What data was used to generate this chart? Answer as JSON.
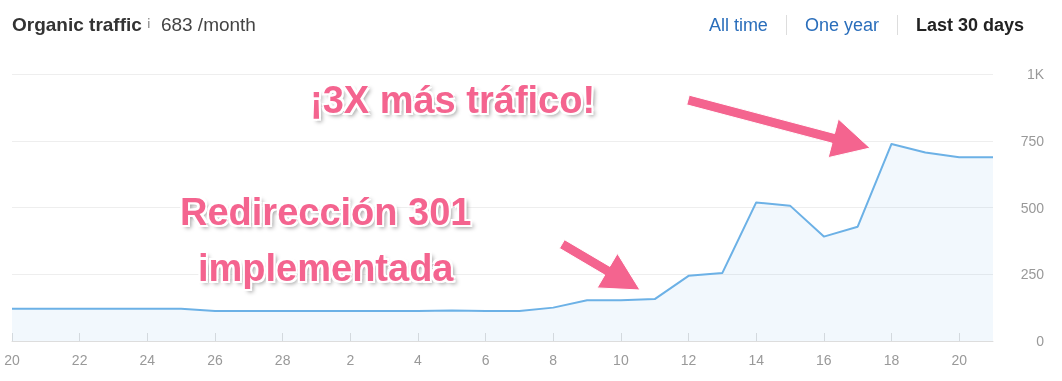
{
  "chart_data": {
    "type": "area",
    "title": "Organic traffic",
    "subtitle": "683 /month",
    "categories": [
      "20",
      null,
      "22",
      null,
      "24",
      null,
      "26",
      null,
      "28",
      null,
      "2",
      null,
      "4",
      null,
      "6",
      null,
      "8",
      null,
      "10",
      null,
      "12",
      null,
      "14",
      null,
      "16",
      null,
      "18",
      null,
      "20",
      null
    ],
    "series": [
      {
        "color": "#6cb1e6",
        "values": [
          121,
          121,
          121,
          121,
          121,
          121,
          112,
          112,
          112,
          112,
          112,
          112,
          112,
          114,
          112,
          112,
          125,
          153,
          153,
          157,
          244,
          255,
          519,
          507,
          391,
          428,
          738,
          706,
          688,
          688
        ]
      }
    ],
    "ylim": [
      0,
      1000
    ],
    "yticks": [
      0,
      250,
      500,
      750,
      {
        "value": 1000,
        "label": "1K"
      }
    ],
    "grid": "y",
    "marker": "none",
    "line_style": "solid",
    "annotations": [
      "¡3X más tráfico!",
      "Redirección 301\nimplementada",
      "All time",
      "One year",
      "Last 30 days"
    ]
  }
}
